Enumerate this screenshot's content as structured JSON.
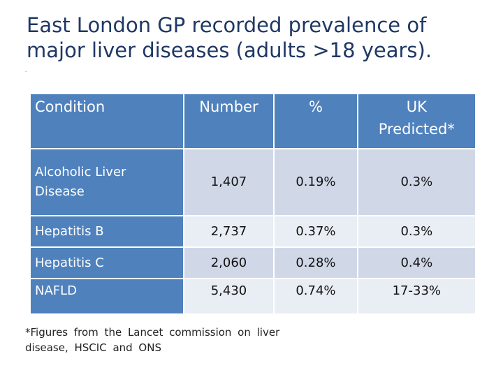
{
  "slide": {
    "title": "East London GP recorded prevalence of major liver diseases (adults >18 years).",
    "marker": "."
  },
  "table": {
    "headers": {
      "condition": "Condition",
      "number": "Number",
      "percent": "%",
      "uk_line1": "UK",
      "uk_line2": "Predicted*"
    },
    "rows": [
      {
        "condition": "Alcoholic Liver Disease",
        "number": "1,407",
        "percent": "0.19%",
        "uk": "0.3%"
      },
      {
        "condition": "Hepatitis B",
        "number": "2,737",
        "percent": "0.37%",
        "uk": "0.3%"
      },
      {
        "condition": "Hepatitis C",
        "number": "2,060",
        "percent": "0.28%",
        "uk": "0.4%"
      },
      {
        "condition": "NAFLD",
        "number": "5,430",
        "percent": "0.74%",
        "uk": "17-33%"
      }
    ]
  },
  "footnote": "*Figures from the Lancet commission on liver disease, HSCIC and ONS",
  "colors": {
    "title": "#1f3864",
    "header_bg": "#4f81bd",
    "row_band_dark": "#d0d8e8",
    "row_band_light": "#e9edf4"
  }
}
